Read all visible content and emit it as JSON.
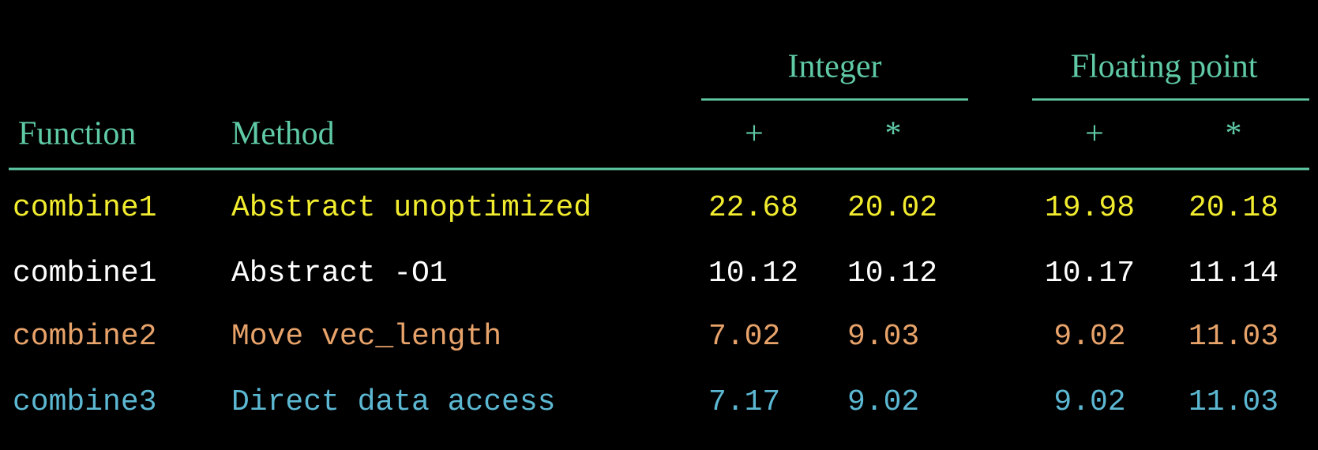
{
  "table": {
    "groups": [
      "Integer",
      "Floating point"
    ],
    "columns": [
      "Function",
      "Method",
      "+",
      "*",
      "+",
      "*"
    ],
    "header_color": "#5fcaa4",
    "rows": [
      {
        "color": "#f2ec2e",
        "cells": [
          "combine1",
          "Abstract unoptimized",
          "22.68",
          "20.02",
          "19.98",
          "20.18"
        ]
      },
      {
        "color": "#ffffff",
        "cells": [
          "combine1",
          "Abstract -O1",
          "10.12",
          "10.12",
          "10.17",
          "11.14"
        ]
      },
      {
        "color": "#e8a36a",
        "cells": [
          "combine2",
          "Move vec_length",
          "7.02",
          "9.03",
          "9.02",
          "11.03"
        ]
      },
      {
        "color": "#5cb8d2",
        "cells": [
          "combine3",
          "Direct data access",
          "7.17",
          "9.02",
          "9.02",
          "11.03"
        ]
      }
    ]
  }
}
